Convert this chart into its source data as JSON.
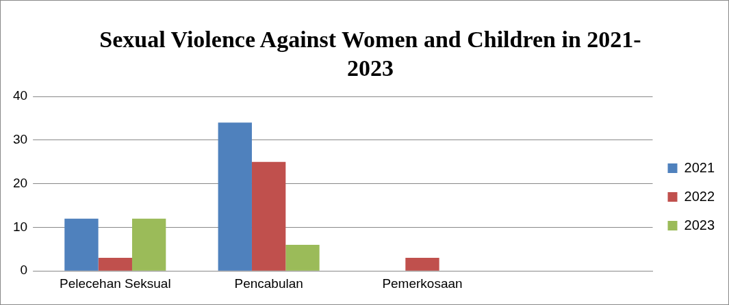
{
  "chart_data": {
    "type": "bar",
    "title": "Sexual Violence Against Women and Children in 2021-2023",
    "categories": [
      "Pelecehan Seksual",
      "Pencabulan",
      "Pemerkosaan",
      null
    ],
    "series": [
      {
        "name": "2021",
        "color": "#4f81bd",
        "values": [
          12,
          34,
          0,
          null
        ]
      },
      {
        "name": "2022",
        "color": "#c0504d",
        "values": [
          3,
          25,
          3,
          null
        ]
      },
      {
        "name": "2023",
        "color": "#9bbb59",
        "values": [
          12,
          6,
          0,
          null
        ]
      }
    ],
    "ylim": [
      0,
      40
    ],
    "yticks": [
      0,
      10,
      20,
      30,
      40
    ],
    "grid": "y",
    "legend": "right"
  }
}
